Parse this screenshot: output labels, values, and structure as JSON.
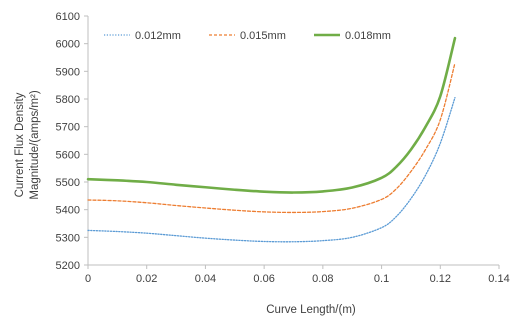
{
  "chart_data": {
    "type": "line",
    "title": "",
    "xlabel": "Curve Length/(m)",
    "ylabel_line1": "Current Flux Density",
    "ylabel_line2": "Magnitude/(amps/m²)",
    "xlim": [
      0,
      0.14
    ],
    "ylim": [
      5200,
      6100
    ],
    "x_ticks": [
      0,
      0.02,
      0.04,
      0.06,
      0.08,
      0.1,
      0.12,
      0.14
    ],
    "x_tick_labels": [
      "0",
      "0.02",
      "0.04",
      "0.06",
      "0.08",
      "0.1",
      "0.12",
      "0.14"
    ],
    "y_ticks": [
      5200,
      5300,
      5400,
      5500,
      5600,
      5700,
      5800,
      5900,
      6000,
      6100
    ],
    "y_tick_labels": [
      "5200",
      "5300",
      "5400",
      "5500",
      "5600",
      "5700",
      "5800",
      "5900",
      "6000",
      "6100"
    ],
    "grid": false,
    "legend_position": "top-left",
    "series": [
      {
        "name": "0.012mm",
        "color": "#5b9bd5",
        "style": "dotted",
        "x": [
          0,
          0.01,
          0.02,
          0.03,
          0.04,
          0.05,
          0.06,
          0.07,
          0.08,
          0.09,
          0.1,
          0.105,
          0.11,
          0.115,
          0.12,
          0.125
        ],
        "y": [
          5325,
          5321,
          5315,
          5306,
          5297,
          5290,
          5285,
          5284,
          5288,
          5300,
          5335,
          5375,
          5440,
          5525,
          5640,
          5805
        ]
      },
      {
        "name": "0.015mm",
        "color": "#ed7d31",
        "style": "dashed",
        "x": [
          0,
          0.01,
          0.02,
          0.03,
          0.04,
          0.05,
          0.06,
          0.07,
          0.08,
          0.09,
          0.1,
          0.105,
          0.11,
          0.115,
          0.12,
          0.125
        ],
        "y": [
          5435,
          5432,
          5425,
          5415,
          5406,
          5398,
          5392,
          5390,
          5393,
          5405,
          5437,
          5475,
          5538,
          5618,
          5725,
          5930
        ]
      },
      {
        "name": "0.018mm",
        "color": "#70ad47",
        "style": "solid",
        "x": [
          0,
          0.01,
          0.02,
          0.03,
          0.04,
          0.05,
          0.06,
          0.07,
          0.08,
          0.09,
          0.1,
          0.105,
          0.11,
          0.115,
          0.12,
          0.125
        ],
        "y": [
          5510,
          5506,
          5500,
          5490,
          5481,
          5472,
          5465,
          5462,
          5466,
          5480,
          5515,
          5555,
          5617,
          5700,
          5810,
          6020
        ]
      }
    ]
  }
}
